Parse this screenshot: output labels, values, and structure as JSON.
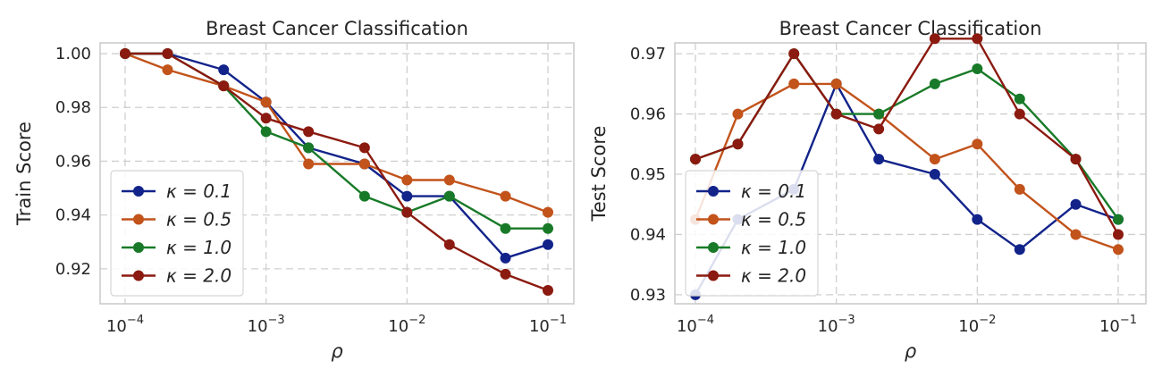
{
  "chart_data": [
    {
      "type": "line",
      "title": "Breast Cancer Classification",
      "xlabel": "ρ",
      "ylabel": "Train Score",
      "xscale": "log",
      "x": [
        0.0001,
        0.0002,
        0.0005,
        0.001,
        0.002,
        0.005,
        0.01,
        0.02,
        0.05,
        0.1
      ],
      "xticks": [
        0.0001,
        0.001,
        0.01,
        0.1
      ],
      "xtick_labels": [
        {
          "base": "10",
          "exp": "−4"
        },
        {
          "base": "10",
          "exp": "−3"
        },
        {
          "base": "10",
          "exp": "−2"
        },
        {
          "base": "10",
          "exp": "−1"
        }
      ],
      "ylim": [
        0.907,
        1.004
      ],
      "yticks": [
        0.92,
        0.94,
        0.96,
        0.98,
        1.0
      ],
      "ytick_labels": [
        "0.92",
        "0.94",
        "0.96",
        "0.98",
        "1.00"
      ],
      "grid": true,
      "legend_position": "lower-left",
      "series": [
        {
          "name": "κ = 0.1",
          "color": "#12238a",
          "values": [
            1.0,
            1.0,
            0.994,
            0.982,
            0.965,
            0.959,
            0.947,
            0.947,
            0.924,
            0.929
          ]
        },
        {
          "name": "κ = 0.5",
          "color": "#c2531b",
          "values": [
            1.0,
            0.994,
            0.988,
            0.982,
            0.959,
            0.959,
            0.953,
            0.953,
            0.947,
            0.941
          ]
        },
        {
          "name": "κ = 1.0",
          "color": "#187a28",
          "values": [
            1.0,
            1.0,
            0.988,
            0.971,
            0.965,
            0.947,
            0.941,
            0.947,
            0.935,
            0.935
          ]
        },
        {
          "name": "κ = 2.0",
          "color": "#8b1a10",
          "values": [
            1.0,
            1.0,
            0.988,
            0.976,
            0.971,
            0.965,
            0.941,
            0.929,
            0.918,
            0.912
          ]
        }
      ]
    },
    {
      "type": "line",
      "title": "Breast Cancer Classification",
      "xlabel": "ρ",
      "ylabel": "Test Score",
      "xscale": "log",
      "x": [
        0.0001,
        0.0002,
        0.0005,
        0.001,
        0.002,
        0.005,
        0.01,
        0.02,
        0.05,
        0.1
      ],
      "xticks": [
        0.0001,
        0.001,
        0.01,
        0.1
      ],
      "xtick_labels": [
        {
          "base": "10",
          "exp": "−4"
        },
        {
          "base": "10",
          "exp": "−3"
        },
        {
          "base": "10",
          "exp": "−2"
        },
        {
          "base": "10",
          "exp": "−1"
        }
      ],
      "ylim": [
        0.9285,
        0.9718
      ],
      "yticks": [
        0.93,
        0.94,
        0.95,
        0.96,
        0.97
      ],
      "ytick_labels": [
        "0.93",
        "0.94",
        "0.95",
        "0.96",
        "0.97"
      ],
      "grid": true,
      "legend_position": "lower-left",
      "series": [
        {
          "name": "κ = 0.1",
          "color": "#12238a",
          "values": [
            0.93,
            0.9425,
            0.9475,
            0.965,
            0.9525,
            0.95,
            0.9425,
            0.9375,
            0.945,
            0.9425
          ]
        },
        {
          "name": "κ = 0.5",
          "color": "#c2531b",
          "values": [
            0.9425,
            0.96,
            0.965,
            0.965,
            0.96,
            0.9525,
            0.955,
            0.9475,
            0.94,
            0.9375
          ]
        },
        {
          "name": "κ = 1.0",
          "color": "#187a28",
          "values": [
            0.9525,
            0.955,
            0.97,
            0.96,
            0.96,
            0.965,
            0.9675,
            0.9625,
            0.9525,
            0.9425
          ]
        },
        {
          "name": "κ = 2.0",
          "color": "#8b1a10",
          "values": [
            0.9525,
            0.955,
            0.97,
            0.96,
            0.9575,
            0.9725,
            0.9725,
            0.96,
            0.9525,
            0.94
          ]
        }
      ]
    }
  ]
}
